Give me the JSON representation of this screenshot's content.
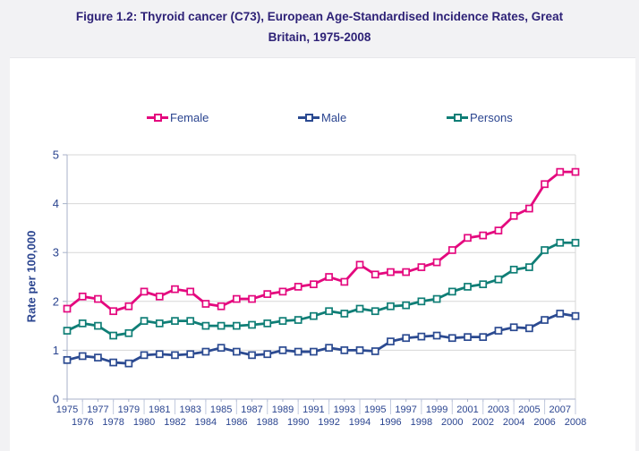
{
  "title": {
    "line1": "Figure 1.2: Thyroid cancer (C73), European Age-Standardised Incidence Rates, Great",
    "line2": "Britain, 1975-2008"
  },
  "colors": {
    "title_text": "#2e2277",
    "axis_text": "#2b4590",
    "gridline": "#d7d7d7",
    "axis_line": "#a8b2ca",
    "tick_separator": "#c2cade",
    "page_background": "#f2f2f4",
    "chart_background": "#ffffff",
    "female": "#e4087e",
    "male": "#2b4a91",
    "persons": "#0f7e76"
  },
  "chart_data": {
    "type": "line",
    "title": "Figure 1.2: Thyroid cancer (C73), European Age-Standardised Incidence Rates, Great Britain, 1975-2008",
    "xlabel": "",
    "ylabel": "Rate per 100,000",
    "ylim": [
      0,
      5
    ],
    "yticks": [
      0,
      1,
      2,
      3,
      4,
      5
    ],
    "grid": true,
    "legend_position": "top",
    "marker": "open-square",
    "x": [
      1975,
      1976,
      1977,
      1978,
      1979,
      1980,
      1981,
      1982,
      1983,
      1984,
      1985,
      1986,
      1987,
      1988,
      1989,
      1990,
      1991,
      1992,
      1993,
      1994,
      1995,
      1996,
      1997,
      1998,
      1999,
      2000,
      2001,
      2002,
      2003,
      2004,
      2005,
      2006,
      2007,
      2008
    ],
    "series": [
      {
        "name": "Female",
        "color": "#e4087e",
        "values": [
          1.85,
          2.1,
          2.05,
          1.8,
          1.9,
          2.2,
          2.1,
          2.25,
          2.2,
          1.95,
          1.9,
          2.05,
          2.05,
          2.15,
          2.2,
          2.3,
          2.35,
          2.5,
          2.4,
          2.75,
          2.55,
          2.6,
          2.6,
          2.7,
          2.8,
          3.05,
          3.3,
          3.35,
          3.45,
          3.75,
          3.9,
          4.4,
          4.65,
          4.65
        ]
      },
      {
        "name": "Male",
        "color": "#2b4a91",
        "values": [
          0.8,
          0.88,
          0.85,
          0.75,
          0.73,
          0.9,
          0.92,
          0.9,
          0.92,
          0.97,
          1.05,
          0.97,
          0.9,
          0.92,
          1.0,
          0.97,
          0.97,
          1.05,
          1.0,
          1.0,
          0.98,
          1.18,
          1.25,
          1.28,
          1.3,
          1.25,
          1.27,
          1.27,
          1.4,
          1.47,
          1.45,
          1.62,
          1.75,
          1.7
        ]
      },
      {
        "name": "Persons",
        "color": "#0f7e76",
        "values": [
          1.4,
          1.55,
          1.5,
          1.3,
          1.35,
          1.6,
          1.55,
          1.6,
          1.6,
          1.5,
          1.5,
          1.5,
          1.52,
          1.55,
          1.6,
          1.62,
          1.7,
          1.8,
          1.75,
          1.85,
          1.8,
          1.9,
          1.92,
          2.0,
          2.05,
          2.2,
          2.3,
          2.35,
          2.45,
          2.65,
          2.7,
          3.05,
          3.2,
          3.2
        ]
      }
    ]
  }
}
